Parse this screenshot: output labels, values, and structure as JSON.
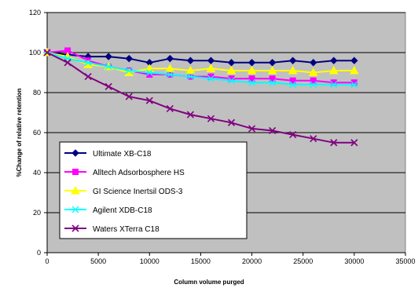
{
  "chart_data": {
    "type": "line",
    "title": "",
    "xlabel": "Column volume purged",
    "ylabel": "%Change of relative retention",
    "xlim": [
      0,
      35000
    ],
    "ylim": [
      0,
      120
    ],
    "x_ticks": [
      "0",
      "5000",
      "10000",
      "15000",
      "20000",
      "25000",
      "30000",
      "35000"
    ],
    "y_ticks": [
      "0",
      "20",
      "40",
      "60",
      "80",
      "100",
      "120"
    ],
    "grid": "horizontal",
    "plot_background": "#c0c0c0",
    "legend_placement": "lower-left inside plot",
    "series": [
      {
        "name": "Ultimate XB-C18",
        "color": "#000080",
        "marker": "diamond",
        "x": [
          0,
          2000,
          4000,
          6000,
          8000,
          10000,
          12000,
          14000,
          16000,
          18000,
          20000,
          22000,
          24000,
          26000,
          28000,
          30000
        ],
        "y": [
          100,
          99,
          98,
          98,
          97,
          95,
          97,
          96,
          96,
          95,
          95,
          95,
          96,
          95,
          96,
          96
        ]
      },
      {
        "name": "Alltech Adsorbosphere HS",
        "color": "#ff00ff",
        "marker": "square",
        "x": [
          0,
          2000,
          4000,
          6000,
          8000,
          10000,
          12000,
          14000,
          16000,
          18000,
          20000,
          22000,
          24000,
          26000,
          28000,
          30000
        ],
        "y": [
          100,
          101,
          96,
          93,
          91,
          89,
          89,
          88,
          88,
          87,
          87,
          87,
          86,
          86,
          85,
          85
        ]
      },
      {
        "name": "GI Science Inertsil ODS-3",
        "color": "#ffff00",
        "marker": "triangle",
        "x": [
          0,
          2000,
          4000,
          6000,
          8000,
          10000,
          12000,
          14000,
          16000,
          18000,
          20000,
          22000,
          24000,
          26000,
          28000,
          30000
        ],
        "y": [
          100,
          98,
          94,
          93,
          90,
          92,
          92,
          91,
          92,
          91,
          91,
          91,
          91,
          90,
          91,
          91
        ]
      },
      {
        "name": "Agilent XDB-C18",
        "color": "#00ffff",
        "marker": "asterisk",
        "x": [
          0,
          2000,
          4000,
          6000,
          8000,
          10000,
          12000,
          14000,
          16000,
          18000,
          20000,
          22000,
          24000,
          26000,
          28000,
          30000
        ],
        "y": [
          100,
          97,
          95,
          93,
          91,
          90,
          89,
          88,
          87,
          86,
          85,
          85,
          84,
          84,
          84,
          84
        ]
      },
      {
        "name": "Waters XTerra C18",
        "color": "#800080",
        "marker": "x",
        "x": [
          0,
          2000,
          4000,
          6000,
          8000,
          10000,
          12000,
          14000,
          16000,
          18000,
          20000,
          22000,
          24000,
          26000,
          28000,
          30000
        ],
        "y": [
          100,
          95,
          88,
          83,
          78,
          76,
          72,
          69,
          67,
          65,
          62,
          61,
          59,
          57,
          55,
          55
        ]
      }
    ]
  }
}
